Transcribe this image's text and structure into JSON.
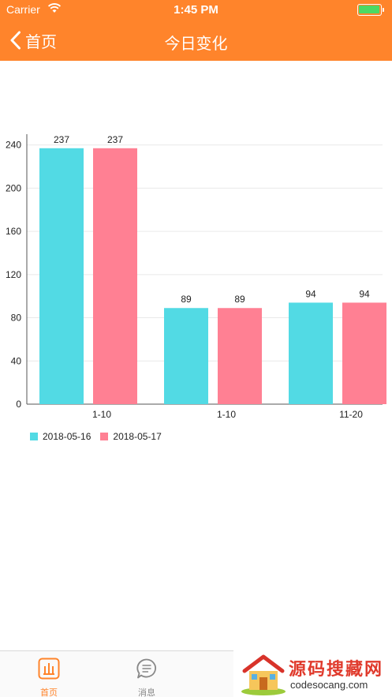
{
  "status_bar": {
    "carrier": "Carrier",
    "time": "1:45 PM",
    "battery_level": 1.0
  },
  "nav": {
    "back_label": "首页",
    "title": "今日变化",
    "back_icon": "chevron-left-icon"
  },
  "chart_data": {
    "type": "bar",
    "categories": [
      "1-10",
      "1-10",
      "11-20"
    ],
    "series": [
      {
        "name": "2018-05-16",
        "values": [
          237,
          89,
          94
        ],
        "color": "#52DAE4"
      },
      {
        "name": "2018-05-17",
        "values": [
          237,
          89,
          94
        ],
        "color": "#FF8093"
      }
    ],
    "ylim": [
      0,
      250
    ],
    "yticks": [
      0,
      40,
      80,
      120,
      160,
      200,
      240
    ],
    "grid": true,
    "legend_position": "bottom-left",
    "data_labels": true
  },
  "tabbar": {
    "home_label": "首页",
    "home_icon": "chart-icon",
    "messages_label": "消息",
    "messages_icon": "message-icon",
    "active_color": "#FF842B"
  },
  "watermark": {
    "text_cn": "源码搜藏网",
    "text_en": "codesocang.com"
  },
  "colors": {
    "nav_background": "#FF842B",
    "series1": "#52DAE4",
    "series2": "#FF8093"
  }
}
